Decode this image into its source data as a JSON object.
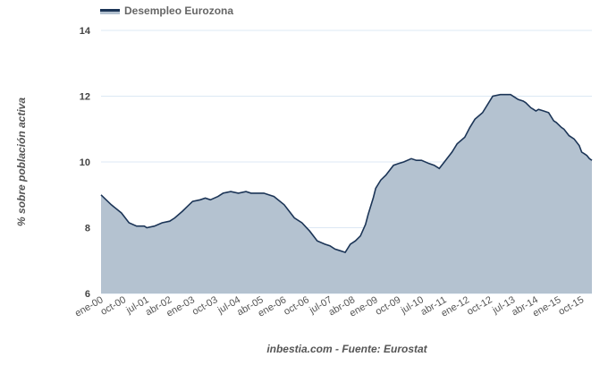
{
  "chart_data": {
    "type": "area",
    "title": "",
    "legend": {
      "label": "Desempleo Eurozona",
      "placement": "top-left"
    },
    "ylabel": "% sobre población activa",
    "xlabel": "",
    "source": "inbestia.com - Fuente: Eurostat",
    "ylim": [
      6,
      14
    ],
    "yticks": [
      6,
      8,
      10,
      12,
      14
    ],
    "xlim_months_from_jan2000": [
      0,
      193
    ],
    "xticks": [
      {
        "m": 0,
        "label": "ene-00"
      },
      {
        "m": 9,
        "label": "oct-00"
      },
      {
        "m": 18,
        "label": "jul-01"
      },
      {
        "m": 27,
        "label": "abr-02"
      },
      {
        "m": 36,
        "label": "ene-03"
      },
      {
        "m": 45,
        "label": "oct-03"
      },
      {
        "m": 54,
        "label": "jul-04"
      },
      {
        "m": 63,
        "label": "abr-05"
      },
      {
        "m": 72,
        "label": "ene-06"
      },
      {
        "m": 81,
        "label": "oct-06"
      },
      {
        "m": 90,
        "label": "jul-07"
      },
      {
        "m": 99,
        "label": "abr-08"
      },
      {
        "m": 108,
        "label": "ene-09"
      },
      {
        "m": 117,
        "label": "oct-09"
      },
      {
        "m": 126,
        "label": "jul-10"
      },
      {
        "m": 135,
        "label": "abr-11"
      },
      {
        "m": 144,
        "label": "ene-12"
      },
      {
        "m": 153,
        "label": "oct-12"
      },
      {
        "m": 162,
        "label": "jul-13"
      },
      {
        "m": 171,
        "label": "abr-14"
      },
      {
        "m": 180,
        "label": "ene-15"
      },
      {
        "m": 189,
        "label": "oct-15"
      }
    ],
    "series": [
      {
        "name": "Desempleo Eurozona",
        "color": "#1c3557",
        "fill": "#b4c2d0",
        "points": [
          [
            0,
            9.0
          ],
          [
            4,
            8.7
          ],
          [
            8,
            8.45
          ],
          [
            11,
            8.15
          ],
          [
            14,
            8.05
          ],
          [
            17,
            8.05
          ],
          [
            18,
            8.0
          ],
          [
            21,
            8.05
          ],
          [
            24,
            8.15
          ],
          [
            27,
            8.2
          ],
          [
            29,
            8.3
          ],
          [
            32,
            8.5
          ],
          [
            34,
            8.65
          ],
          [
            36,
            8.8
          ],
          [
            39,
            8.85
          ],
          [
            41,
            8.9
          ],
          [
            43,
            8.85
          ],
          [
            46,
            8.95
          ],
          [
            48,
            9.05
          ],
          [
            51,
            9.1
          ],
          [
            54,
            9.05
          ],
          [
            57,
            9.1
          ],
          [
            59,
            9.05
          ],
          [
            61,
            9.05
          ],
          [
            64,
            9.05
          ],
          [
            66,
            9.0
          ],
          [
            68,
            8.95
          ],
          [
            72,
            8.7
          ],
          [
            74,
            8.5
          ],
          [
            76,
            8.3
          ],
          [
            79,
            8.15
          ],
          [
            82,
            7.9
          ],
          [
            85,
            7.6
          ],
          [
            88,
            7.5
          ],
          [
            90,
            7.45
          ],
          [
            92,
            7.35
          ],
          [
            94,
            7.3
          ],
          [
            96,
            7.25
          ],
          [
            98,
            7.5
          ],
          [
            100,
            7.6
          ],
          [
            102,
            7.75
          ],
          [
            104,
            8.1
          ],
          [
            105,
            8.4
          ],
          [
            107,
            8.9
          ],
          [
            108,
            9.2
          ],
          [
            110,
            9.45
          ],
          [
            112,
            9.6
          ],
          [
            115,
            9.9
          ],
          [
            117,
            9.95
          ],
          [
            119,
            10.0
          ],
          [
            122,
            10.1
          ],
          [
            124,
            10.05
          ],
          [
            126,
            10.05
          ],
          [
            129,
            9.95
          ],
          [
            131,
            9.9
          ],
          [
            133,
            9.8
          ],
          [
            135,
            10.0
          ],
          [
            138,
            10.3
          ],
          [
            140,
            10.55
          ],
          [
            143,
            10.75
          ],
          [
            145,
            11.05
          ],
          [
            147,
            11.3
          ],
          [
            150,
            11.5
          ],
          [
            152,
            11.75
          ],
          [
            154,
            12.0
          ],
          [
            157,
            12.05
          ],
          [
            159,
            12.05
          ],
          [
            161,
            12.05
          ],
          [
            163,
            11.95
          ],
          [
            164,
            11.9
          ],
          [
            166,
            11.85
          ],
          [
            167,
            11.8
          ],
          [
            169,
            11.65
          ],
          [
            170,
            11.6
          ],
          [
            171,
            11.55
          ],
          [
            172,
            11.6
          ],
          [
            174,
            11.55
          ],
          [
            176,
            11.5
          ],
          [
            178,
            11.25
          ],
          [
            179,
            11.2
          ],
          [
            181,
            11.05
          ],
          [
            182,
            11.0
          ],
          [
            184,
            10.8
          ],
          [
            186,
            10.7
          ],
          [
            188,
            10.5
          ],
          [
            189,
            10.3
          ],
          [
            190,
            10.25
          ],
          [
            191,
            10.2
          ],
          [
            192,
            10.1
          ],
          [
            193,
            10.05
          ]
        ]
      }
    ]
  }
}
